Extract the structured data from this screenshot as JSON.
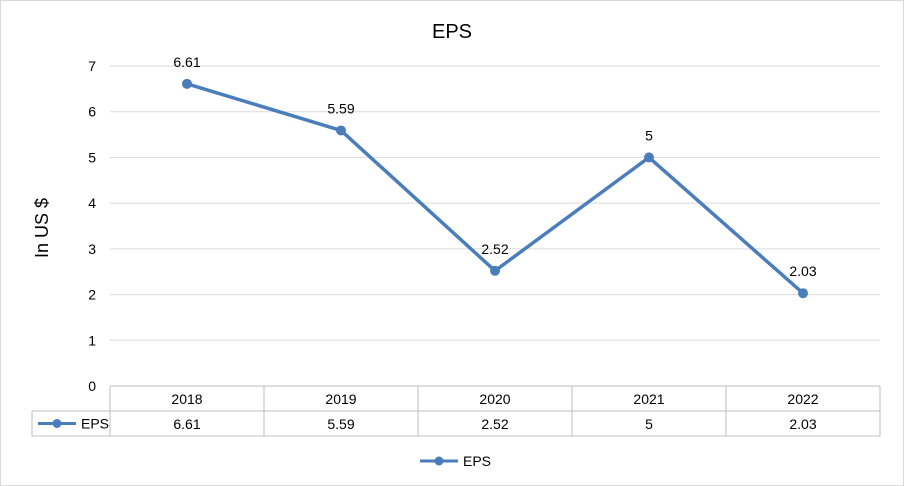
{
  "chart_data": {
    "type": "line",
    "title": "EPS",
    "ylabel": "In US $",
    "xlabel": "",
    "categories": [
      "2018",
      "2019",
      "2020",
      "2021",
      "2022"
    ],
    "series": [
      {
        "name": "EPS",
        "values": [
          6.61,
          5.59,
          2.52,
          5,
          2.03
        ]
      }
    ],
    "data_labels": [
      "6.61",
      "5.59",
      "2.52",
      "5",
      "2.03"
    ],
    "table_values": [
      "6.61",
      "5.59",
      "2.52",
      "5",
      "2.03"
    ],
    "yticks": [
      "0",
      "1",
      "2",
      "3",
      "4",
      "5",
      "6",
      "7"
    ],
    "ylim": [
      0,
      7
    ],
    "grid": true,
    "data_table": true,
    "legend": "bottom-center",
    "colors": {
      "series": "#4a7ebb",
      "grid": "#d9d9d9",
      "table_border": "#bfbfbf"
    }
  }
}
